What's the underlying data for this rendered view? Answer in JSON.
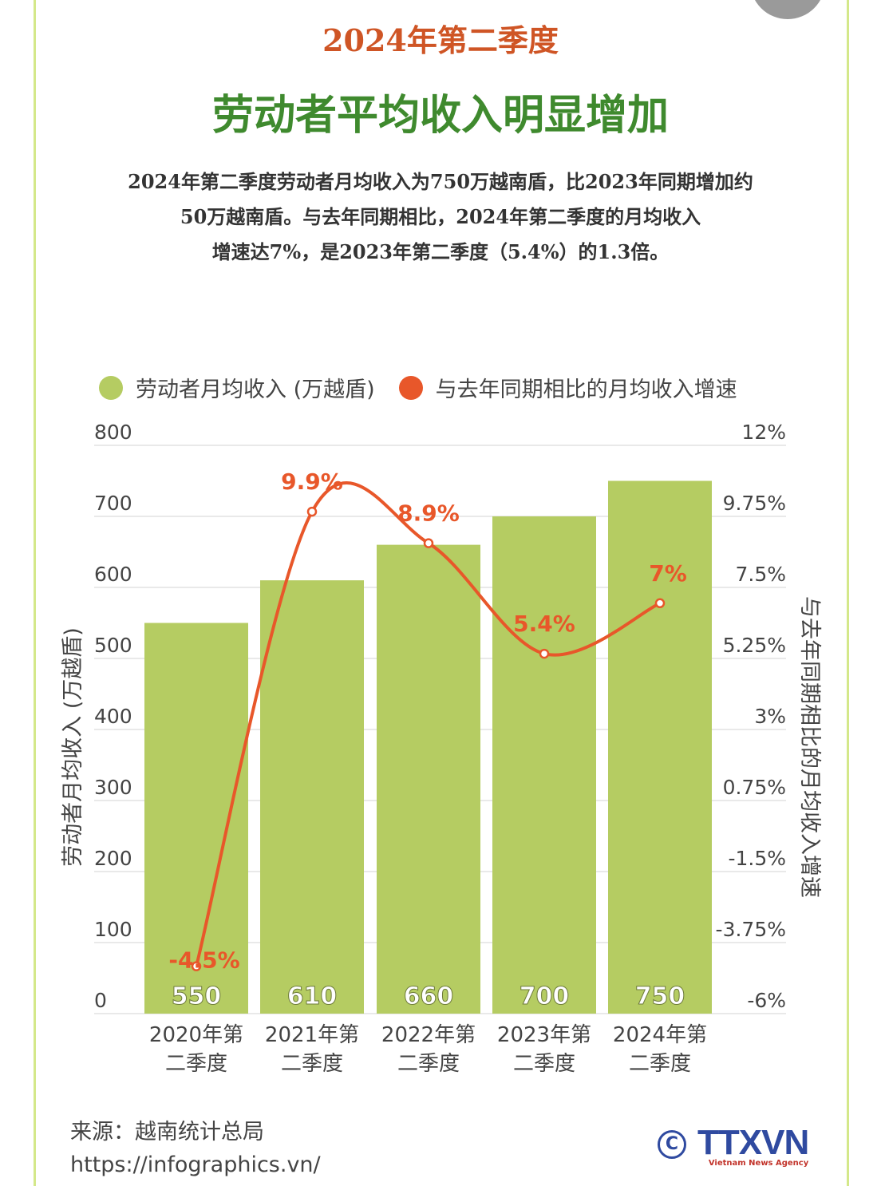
{
  "header": {
    "supertitle": "2024年第二季度",
    "title": "劳动者平均收入明显增加",
    "description": [
      "2024年第二季度劳动者月均收入为750万越南盾，比2023年同期增加约",
      "50万越南盾。与去年同期相比，2024年第二季度的月均收入",
      "增速达7%，是2023年第二季度（5.4%）的1.3倍。"
    ]
  },
  "chart_data": {
    "type": "bar+line",
    "categories": [
      [
        "2020年第",
        "二季度"
      ],
      [
        "2021年第",
        "二季度"
      ],
      [
        "2022年第",
        "二季度"
      ],
      [
        "2023年第",
        "二季度"
      ],
      [
        "2024年第",
        "二季度"
      ]
    ],
    "series": [
      {
        "name": "劳动者月均收入 (万越盾)",
        "type": "bar",
        "axis": "left",
        "values": [
          550,
          610,
          660,
          700,
          750
        ],
        "labels": [
          "550",
          "610",
          "660",
          "700",
          "750"
        ],
        "color": "#b5cc62"
      },
      {
        "name": "与去年同期相比的月均收入增速",
        "type": "line",
        "axis": "right",
        "values": [
          -4.5,
          9.9,
          8.9,
          5.4,
          7
        ],
        "labels": [
          "-4.5%",
          "9.9%",
          "8.9%",
          "5.4%",
          "7%"
        ],
        "color": "#e8572a"
      }
    ],
    "ylabel": "劳动者月均收入 (万越盾)",
    "y2label": "与去年同期相比的月均收入增速",
    "ylim": [
      0,
      800
    ],
    "yticks": [
      "0",
      "100",
      "200",
      "300",
      "400",
      "500",
      "600",
      "700",
      "800"
    ],
    "y2lim": [
      -6,
      12
    ],
    "y2ticks": [
      "-6%",
      "-3.75%",
      "-1.5%",
      "0.75%",
      "3%",
      "5.25%",
      "7.5%",
      "9.75%",
      "12%"
    ],
    "grid": true,
    "legend": "top"
  },
  "footer": {
    "source": "来源：越南统计总局",
    "url": "https://infographics.vn/",
    "logo": "TTXVN",
    "logo_sub": "Vietnam News Agency"
  }
}
